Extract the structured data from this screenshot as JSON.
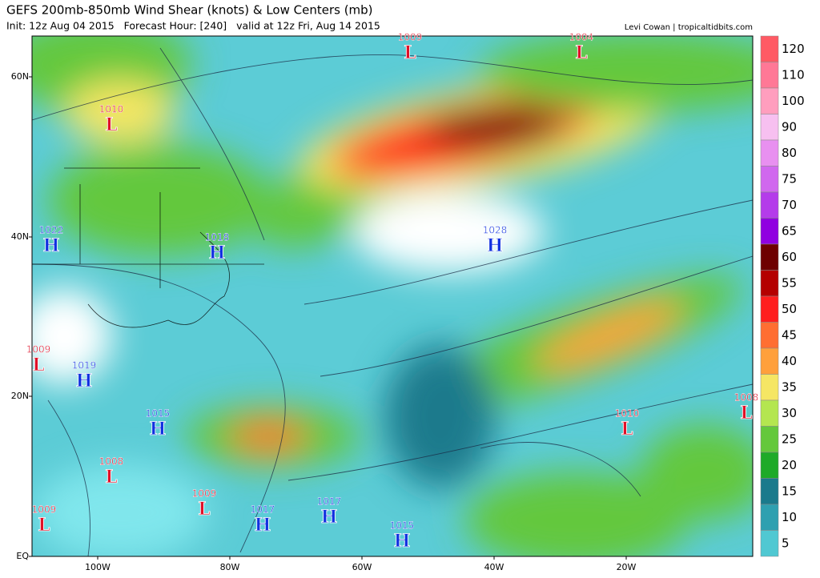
{
  "header": {
    "title": "GEFS 200mb-850mb Wind Shear (knots) & Low Centers (mb)",
    "subtitle": "Init: 12z Aug 04 2015   Forecast Hour: [240]   valid at 12z Fri, Aug 14 2015",
    "credit": "Levi Cowan | tropicaltidbits.com"
  },
  "lat_labels": [
    "60N",
    "40N",
    "20N",
    "EQ"
  ],
  "lon_labels": [
    "100W",
    "80W",
    "60W",
    "40W",
    "20W"
  ],
  "colorbar": {
    "levels": [
      120,
      110,
      100,
      90,
      80,
      75,
      70,
      65,
      60,
      55,
      50,
      45,
      40,
      35,
      30,
      25,
      20,
      15,
      10,
      5
    ],
    "colors": [
      "#ff5a64",
      "#ff7896",
      "#ff9ebe",
      "#f7c0f0",
      "#e890f0",
      "#d068ee",
      "#b43cea",
      "#9000e0",
      "#6e0000",
      "#b40000",
      "#ff1e1e",
      "#ff6e32",
      "#ffa03c",
      "#f5e664",
      "#b4e650",
      "#64c83c",
      "#1eaa28",
      "#1a7a8c",
      "#2ea0b0",
      "#50c8d2",
      "#80e6ec",
      "#ffffff"
    ]
  },
  "centers": [
    {
      "type": "L",
      "value": 1009
    },
    {
      "type": "L",
      "value": 1004
    },
    {
      "type": "L",
      "value": 1010
    },
    {
      "type": "H",
      "value": 1022
    },
    {
      "type": "H",
      "value": 1018
    },
    {
      "type": "H",
      "value": 1028
    },
    {
      "type": "L",
      "value": 1009
    },
    {
      "type": "H",
      "value": 1019
    },
    {
      "type": "H",
      "value": 1015
    },
    {
      "type": "L",
      "value": 1010
    },
    {
      "type": "L",
      "value": 1008
    },
    {
      "type": "L",
      "value": 1008
    },
    {
      "type": "L",
      "value": 1009
    },
    {
      "type": "H",
      "value": 1017
    },
    {
      "type": "H",
      "value": 1017
    },
    {
      "type": "H",
      "value": 1015
    },
    {
      "type": "L",
      "value": 1009
    }
  ]
}
